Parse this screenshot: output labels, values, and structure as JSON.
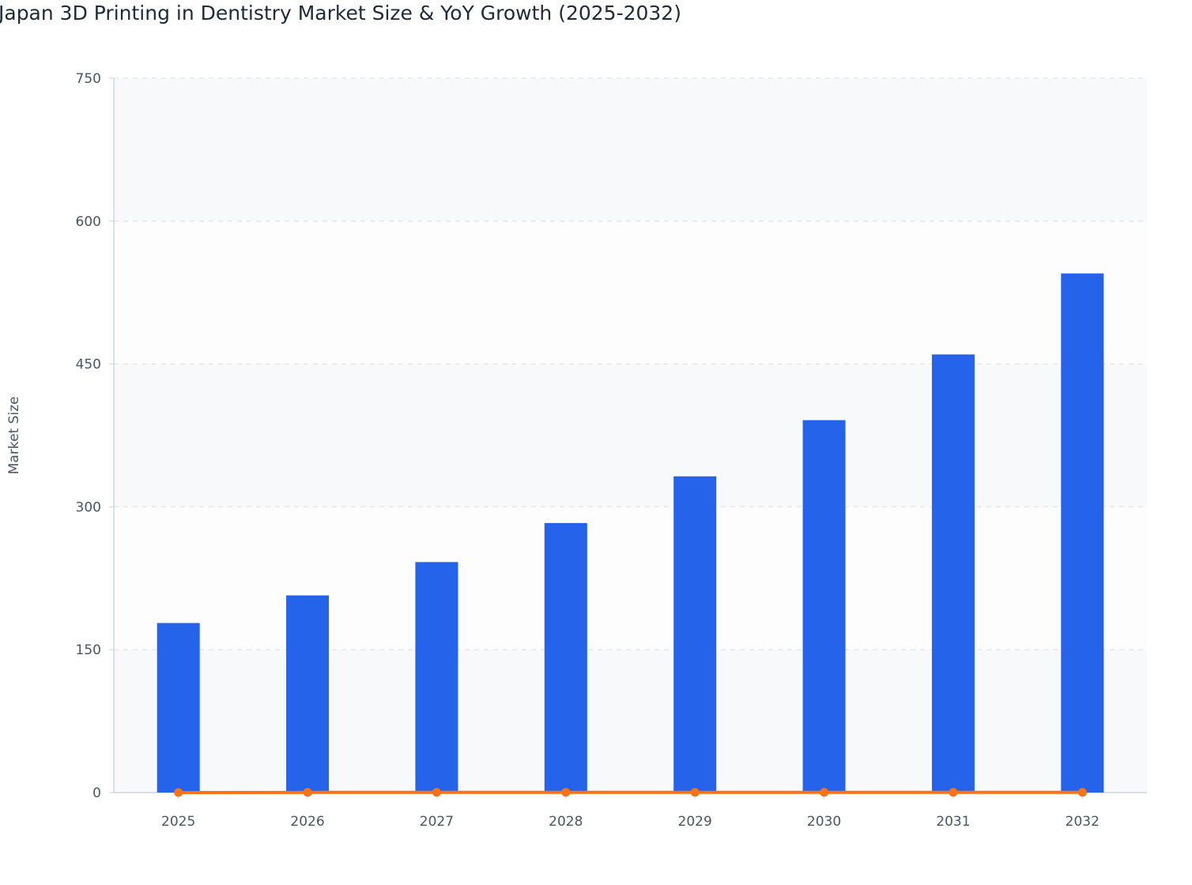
{
  "chart_data": {
    "type": "bar",
    "title": "Japan 3D Printing in Dentistry Market Size & YoY Growth (2025-2032)",
    "xlabel": "",
    "ylabel": "Market Size",
    "ylim": [
      0,
      750
    ],
    "yticks": [
      "0",
      "150",
      "300",
      "450",
      "600",
      "750"
    ],
    "categories": [
      "2025",
      "2026",
      "2027",
      "2028",
      "2029",
      "2030",
      "2031",
      "2032"
    ],
    "grid": true,
    "series": [
      {
        "type": "bar",
        "color": "#2563eb",
        "values": [
          178,
          207,
          242,
          283,
          332,
          391,
          460,
          545
        ]
      },
      {
        "type": "line",
        "color": "#f97316",
        "values": [
          0,
          0.16,
          0.17,
          0.17,
          0.17,
          0.18,
          0.18,
          0.18
        ]
      }
    ]
  }
}
